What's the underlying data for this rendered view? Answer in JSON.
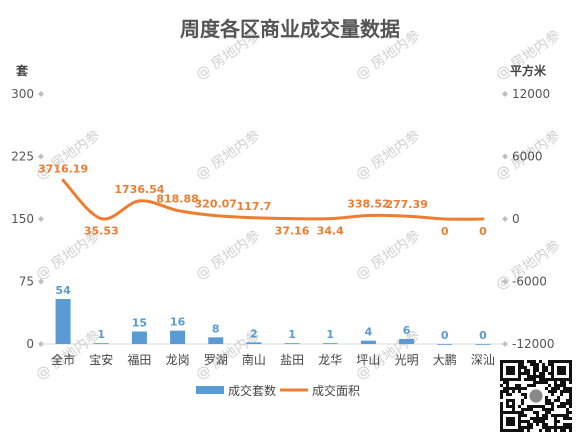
{
  "chart_data": {
    "type": "bar",
    "title": "周度各区商业成交量数据",
    "categories": [
      "全市",
      "宝安",
      "福田",
      "龙岗",
      "罗湖",
      "南山",
      "盐田",
      "龙华",
      "坪山",
      "光明",
      "大鹏",
      "深汕"
    ],
    "series": [
      {
        "name": "成交套数",
        "type": "bar",
        "axis": "left",
        "color": "#5b9bd5",
        "values": [
          54,
          1,
          15,
          16,
          8,
          2,
          1,
          1,
          4,
          6,
          0,
          0
        ],
        "labels": [
          "54",
          "1",
          "15",
          "16",
          "8",
          "2",
          "1",
          "1",
          "4",
          "6",
          "0",
          "0"
        ]
      },
      {
        "name": "成交面积",
        "type": "line",
        "axis": "right",
        "color": "#ed7d31",
        "values": [
          3716.19,
          35.53,
          1736.54,
          818.88,
          320.07,
          117.7,
          37.16,
          34.4,
          338.52,
          277.39,
          0,
          0
        ],
        "labels": [
          "3716.19",
          "35.53",
          "1736.54",
          "818.88",
          "320.07",
          "117.7",
          "37.16",
          "34.4",
          "338.52",
          "277.39",
          "0",
          "0"
        ]
      }
    ],
    "y_left": {
      "label": "套",
      "ylim": [
        0,
        300
      ],
      "ticks": [
        "0",
        "75",
        "150",
        "225",
        "300"
      ]
    },
    "y_right": {
      "label": "平方米",
      "ylim": [
        -12000,
        12000
      ],
      "ticks": [
        "-12000",
        "-6000",
        "0",
        "6000",
        "12000"
      ]
    },
    "legend_position": "bottom",
    "grid": false
  },
  "watermark": "@ 房地内参"
}
